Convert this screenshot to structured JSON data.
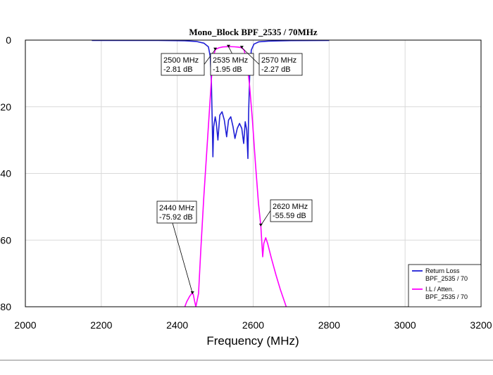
{
  "chart_data": {
    "type": "line",
    "title": "Mono_Block BPF_2535 / 70MHz",
    "xlabel": "Frequency (MHz)",
    "ylabel": "",
    "xlim": [
      2000,
      3200
    ],
    "ylim": [
      0,
      80
    ],
    "y_inverted": true,
    "grid": true,
    "x_ticks": [
      "2000",
      "2200",
      "2400",
      "2600",
      "2800",
      "3000",
      "3200"
    ],
    "y_ticks": [
      "0",
      "20",
      "40",
      "60",
      "80"
    ],
    "legend_placement": "bottom-right",
    "series": [
      {
        "name": "Return Loss",
        "name2": "BPF_2535 / 70",
        "color": "#1f1fd6",
        "points": [
          [
            2175,
            0.1
          ],
          [
            2350,
            0.1
          ],
          [
            2420,
            0.2
          ],
          [
            2450,
            0.4
          ],
          [
            2470,
            0.9
          ],
          [
            2482,
            2.0
          ],
          [
            2487,
            5.0
          ],
          [
            2490,
            13.0
          ],
          [
            2492,
            24.0
          ],
          [
            2494,
            35.0
          ],
          [
            2496,
            26.0
          ],
          [
            2500,
            23.0
          ],
          [
            2503,
            25.0
          ],
          [
            2507,
            30.0
          ],
          [
            2512,
            22.5
          ],
          [
            2518,
            21.5
          ],
          [
            2524,
            24.0
          ],
          [
            2530,
            29.0
          ],
          [
            2535,
            24.0
          ],
          [
            2541,
            23.0
          ],
          [
            2547,
            26.0
          ],
          [
            2552,
            29.5
          ],
          [
            2558,
            26.5
          ],
          [
            2564,
            25.0
          ],
          [
            2570,
            26.5
          ],
          [
            2575,
            31.0
          ],
          [
            2579,
            24.5
          ],
          [
            2583,
            27.0
          ],
          [
            2586,
            35.5
          ],
          [
            2588,
            22.0
          ],
          [
            2591,
            10.0
          ],
          [
            2595,
            3.0
          ],
          [
            2602,
            1.2
          ],
          [
            2615,
            0.5
          ],
          [
            2640,
            0.3
          ],
          [
            2700,
            0.15
          ],
          [
            2800,
            0.1
          ]
        ]
      },
      {
        "name": "I.L / Atten.",
        "name2": "BPF_2535 / 70",
        "color": "#ff00ff",
        "points": [
          [
            2420,
            80
          ],
          [
            2425,
            78.5
          ],
          [
            2433,
            76.8
          ],
          [
            2438,
            76.0
          ],
          [
            2442,
            76.2
          ],
          [
            2446,
            78.5
          ],
          [
            2449,
            80
          ],
          [
            2456,
            76.0
          ],
          [
            2462,
            63.0
          ],
          [
            2470,
            47.0
          ],
          [
            2478,
            33.0
          ],
          [
            2486,
            19.0
          ],
          [
            2492,
            8.0
          ],
          [
            2497,
            4.2
          ],
          [
            2500,
            2.81
          ],
          [
            2510,
            2.3
          ],
          [
            2520,
            2.05
          ],
          [
            2535,
            1.95
          ],
          [
            2550,
            2.0
          ],
          [
            2560,
            2.1
          ],
          [
            2570,
            2.27
          ],
          [
            2576,
            3.0
          ],
          [
            2582,
            5.5
          ],
          [
            2590,
            13.0
          ],
          [
            2598,
            24.0
          ],
          [
            2606,
            37.0
          ],
          [
            2614,
            49.0
          ],
          [
            2620,
            55.59
          ],
          [
            2625,
            65.0
          ],
          [
            2628,
            61.0
          ],
          [
            2633,
            59.3
          ],
          [
            2638,
            61.0
          ],
          [
            2648,
            65.5
          ],
          [
            2660,
            70.5
          ],
          [
            2672,
            75.0
          ],
          [
            2684,
            79.0
          ],
          [
            2687,
            80
          ]
        ]
      }
    ],
    "annotations": [
      {
        "line1": "2500 MHz",
        "line2": "-2.81 dB",
        "x": 2500,
        "y": 2.81
      },
      {
        "line1": "2535 MHz",
        "line2": "-1.95 dB",
        "x": 2535,
        "y": 1.95
      },
      {
        "line1": "2570 MHz",
        "line2": "-2.27 dB",
        "x": 2570,
        "y": 2.27
      },
      {
        "line1": "2440 MHz",
        "line2": "-75.92 dB",
        "x": 2440,
        "y": 75.92
      },
      {
        "line1": "2620 MHz",
        "line2": "-55.59 dB",
        "x": 2620,
        "y": 55.59
      }
    ]
  }
}
